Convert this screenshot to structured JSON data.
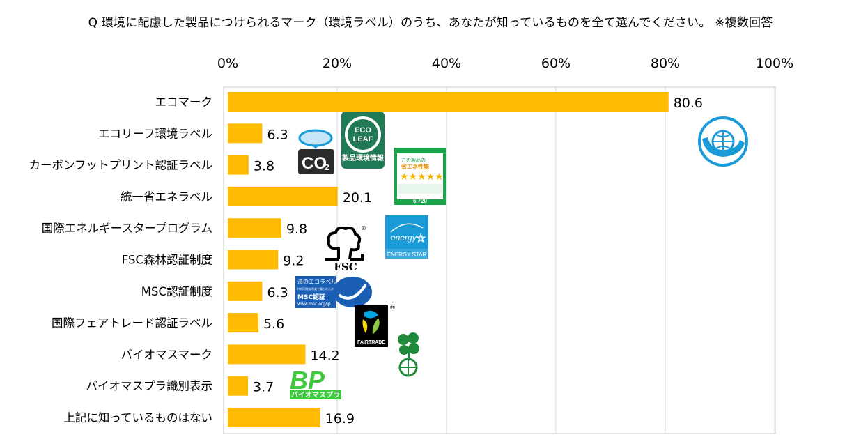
{
  "title": "Q 環境に配慮した製品につけられるマーク（環境ラベル）のうち、あなたが知っているものを全て選んでください。 ※複数回答",
  "chart_data": {
    "type": "bar",
    "orientation": "horizontal",
    "categories": [
      "エコマーク",
      "エコリーフ環境ラベル",
      "カーボンフットプリント認証ラベル",
      "統一省エネラベル",
      "国際エネルギースタープログラム",
      "FSC森林認証制度",
      "MSC認証制度",
      "国際フェアトレード認証ラベル",
      "バイオマスマーク",
      "バイオマスプラ識別表示",
      "上記に知っているものはない"
    ],
    "values": [
      80.6,
      6.3,
      3.8,
      20.1,
      9.8,
      9.2,
      6.3,
      5.6,
      14.2,
      3.7,
      16.9
    ],
    "value_labels": [
      "80.6",
      "6.3",
      "3.8",
      "20.1",
      "9.8",
      "9.2",
      "6.3",
      "5.6",
      "14.2",
      "3.7",
      "16.9"
    ],
    "xlim": [
      0,
      100
    ],
    "ticks": [
      0,
      20,
      40,
      60,
      80,
      100
    ],
    "tick_labels": [
      "0%",
      "20%",
      "40%",
      "60%",
      "80%",
      "100%"
    ],
    "axis_position": "top",
    "grid": true,
    "bar_color": "#FFBB00",
    "grid_color": "#d9d9d9"
  },
  "logos": {
    "ecoleaf": {
      "line1": "ECO",
      "line2": "LEAF",
      "line3": "製品環境情報",
      "color": "#1f7a55"
    },
    "co2": {
      "text": "CO",
      "sub": "2"
    },
    "energy_label": {
      "header": "この製品の",
      "big": "省エネ性能",
      "price": "6,720",
      "color": "#1aa34a"
    },
    "energy_star": {
      "script": "energy",
      "text": "ENERGY STAR",
      "color": "#1a9ad6"
    },
    "fsc": {
      "text": "FSC",
      "reg": "®"
    },
    "msc": {
      "line1": "海のエコラベル",
      "line2": "持続可能な漁業で獲られた水産物",
      "brand": "MSC認証",
      "url": "www.msc.org/jp",
      "color": "#1a5fb4"
    },
    "fairtrade": {
      "text": "FAIRTRADE",
      "reg": "®"
    },
    "biomass_pla": {
      "mark": "BP",
      "text": "バイオマスプラ",
      "color": "#3ec93e"
    },
    "ecomark_color": "#1a9ad6",
    "biomass_color": "#1f8a3b"
  }
}
